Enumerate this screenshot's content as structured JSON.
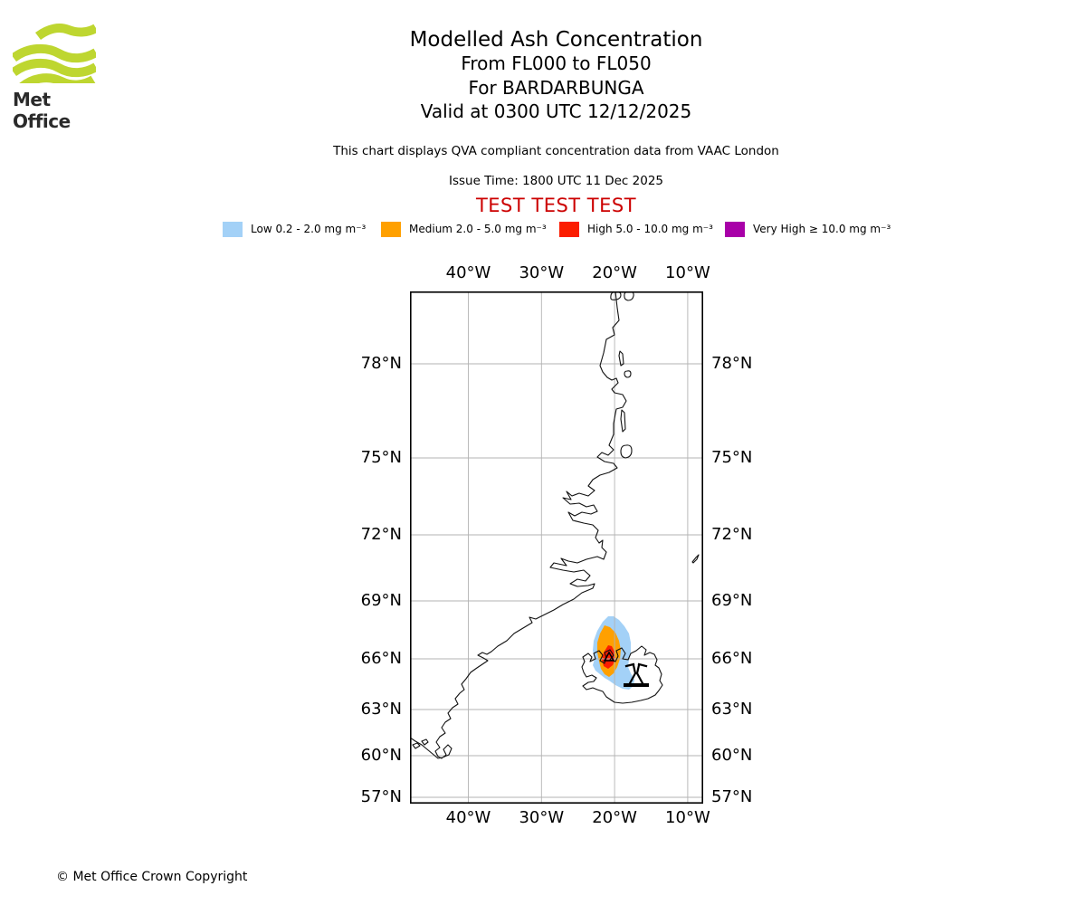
{
  "header": {
    "brand": "Met Office",
    "title": "Modelled Ash Concentration",
    "subtitle_line1": "From FL000 to FL050",
    "subtitle_line2": "For BARDARBUNGA",
    "subtitle_line3": "Valid at 0300 UTC 12/12/2025",
    "description": "This chart displays QVA compliant concentration data from VAAC London",
    "issue_time": "Issue Time: 1800 UTC 11 Dec 2025",
    "test_banner": "TEST TEST TEST",
    "test_banner_color": "#CC0000",
    "logo_green": "#BED630"
  },
  "legend": {
    "items": [
      {
        "label": "Low 0.2 - 2.0 mg m⁻³",
        "color": "#A3D1F7"
      },
      {
        "label": "Medium 2.0 - 5.0 mg m⁻³",
        "color": "#FFA000"
      },
      {
        "label": "High 5.0 - 10.0 mg m⁻³",
        "color": "#FB1D00"
      },
      {
        "label": "Very High ≥ 10.0 mg m⁻³",
        "color": "#A800A8"
      }
    ]
  },
  "chart_data": {
    "type": "map",
    "projection": "mercator",
    "title": "Modelled Ash Concentration",
    "volcano": "BARDARBUNGA",
    "flight_levels": "FL000 to FL050",
    "valid_time": "0300 UTC 12/12/2025",
    "issue_time": "1800 UTC 11 Dec 2025",
    "source": "VAAC London",
    "x_ticks": [
      "40°W",
      "30°W",
      "20°W",
      "10°W"
    ],
    "y_ticks": [
      "78°N",
      "75°N",
      "72°N",
      "69°N",
      "66°N",
      "63°N",
      "60°N",
      "57°N"
    ],
    "lon_range": "approx 48°W to 8°W",
    "lat_range": "approx 56.6°N to 80.5°N",
    "grid": true,
    "coastlines": [
      "Greenland east coast",
      "Iceland",
      "Jan Mayen"
    ],
    "eruption_symbol_location": "approx 17.0°W, 65.0°N (Iceland)",
    "layers": [
      {
        "level": "Low",
        "range": "0.2 - 2.0 mg m⁻³",
        "color": "#A3D1F7",
        "approx_extent": "17.3–23.0°W, 64.2–68.2°N"
      },
      {
        "level": "Medium",
        "range": "2.0 - 5.0 mg m⁻³",
        "color": "#FFA000",
        "approx_extent": "19.1–22.4°W, 65.0–67.7°N"
      },
      {
        "level": "High",
        "range": "5.0 - 10.0 mg m⁻³",
        "color": "#FB1D00",
        "approx_extent": "19.9–21.7°W, 65.4–66.7°N"
      },
      {
        "level": "Very High",
        "range": "≥ 10.0 mg m⁻³",
        "color": "#A800A8",
        "approx_extent": "not visible on map"
      }
    ]
  },
  "footer": {
    "copyright": "© Met Office Crown Copyright"
  }
}
